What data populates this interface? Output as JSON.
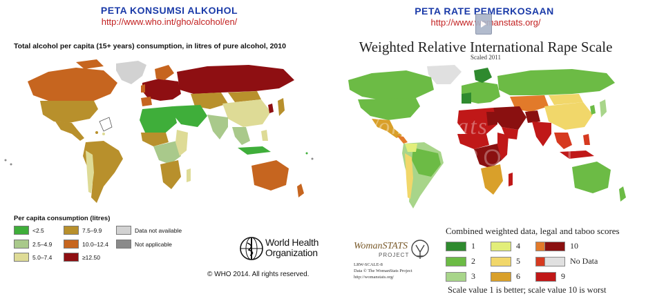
{
  "left": {
    "heading": "PETA KONSUMSI ALKOHOL",
    "url": "http://www.who.int/gho/alcohol/en/",
    "subtitle": "Total alcohol per capita (15+ years) consumption, in litres of pure alcohol, 2010",
    "legend_title": "Per capita consumption (litres)",
    "legend": [
      {
        "label": "<2.5",
        "color": "#3fae3a"
      },
      {
        "label": "2.5–4.9",
        "color": "#a9c98b"
      },
      {
        "label": "5.0–7.4",
        "color": "#dedb96"
      },
      {
        "label": "7.5–9.9",
        "color": "#b8902c"
      },
      {
        "label": "10.0–12.4",
        "color": "#c6651f"
      },
      {
        "label": "≥12.50",
        "color": "#8e0f12"
      },
      {
        "label": "Data not available",
        "color": "#d2d2d2"
      },
      {
        "label": "Not applicable",
        "color": "#8a8a8a"
      }
    ],
    "org_name_line1": "World Health",
    "org_name_line2": "Organization",
    "copyright": "© WHO 2014. All rights reserved."
  },
  "right": {
    "heading": "PETA RATE PEMERKOSAAN",
    "url": "http://www.womanstats.org/",
    "title": "Weighted Relative International Rape Scale",
    "subtitle": "Scaled 2011",
    "legend_title": "Combined weighted data, legal and taboo scores",
    "legend": [
      {
        "label": "1",
        "color": "#2f8a2f"
      },
      {
        "label": "2",
        "color": "#6cbb45"
      },
      {
        "label": "3",
        "color": "#a8d58a"
      },
      {
        "label": "4",
        "color": "#e2ee7a"
      },
      {
        "label": "5",
        "color": "#f1d76a"
      },
      {
        "label": "6",
        "color": "#d9a02a"
      },
      {
        "label": "7",
        "color": "#e27a2a"
      },
      {
        "label": "8",
        "color": "#d63a20"
      },
      {
        "label": "9",
        "color": "#c01818"
      },
      {
        "label": "10",
        "color": "#8a1010"
      },
      {
        "label": "No Data",
        "color": "#e0e0e0"
      }
    ],
    "scale_note": "Scale value 1 is better; scale value 10 is worst",
    "logo_text": "WomanSTATS",
    "logo_project": "PROJECT",
    "logo_lines": [
      "LRW-SCALE-8",
      "Data © The WomanStats Project",
      "http://womanstats.org/"
    ],
    "watermark_1": "WomanStats",
    "watermark_2": "PROJECT"
  }
}
